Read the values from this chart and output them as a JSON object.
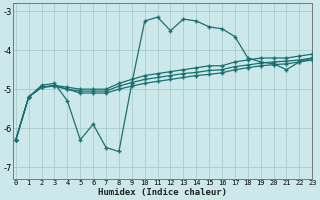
{
  "bg_color": "#cce8ea",
  "grid_color": "#aacccc",
  "line_color": "#1a7070",
  "xlabel": "Humidex (Indice chaleur)",
  "ylim": [
    -7.3,
    -2.8
  ],
  "xlim": [
    -0.2,
    23
  ],
  "yticks": [
    -7,
    -6,
    -5,
    -4,
    -3
  ],
  "xticks": [
    0,
    1,
    2,
    3,
    4,
    5,
    6,
    7,
    8,
    9,
    10,
    11,
    12,
    13,
    14,
    15,
    16,
    17,
    18,
    19,
    20,
    21,
    22,
    23
  ],
  "line1_x": [
    0,
    1,
    2,
    3,
    4,
    5,
    6,
    7,
    8,
    9,
    10,
    11,
    12,
    13,
    14,
    15,
    16,
    17,
    18,
    19,
    20,
    21,
    22,
    23
  ],
  "line1_y": [
    -6.3,
    -5.2,
    -4.9,
    -4.85,
    -5.3,
    -6.3,
    -5.9,
    -6.5,
    -6.6,
    -4.85,
    -3.25,
    -3.15,
    -3.5,
    -3.2,
    -3.25,
    -3.4,
    -3.45,
    -3.65,
    -4.2,
    -4.3,
    -4.35,
    -4.5,
    -4.3,
    -4.2
  ],
  "line2_x": [
    0,
    1,
    2,
    3,
    4,
    5,
    6,
    7,
    8,
    9,
    10,
    11,
    12,
    13,
    14,
    15,
    16,
    17,
    18,
    19,
    20,
    21,
    22,
    23
  ],
  "line2_y": [
    -6.3,
    -5.2,
    -4.95,
    -4.9,
    -4.95,
    -5.0,
    -5.0,
    -5.0,
    -4.85,
    -4.75,
    -4.65,
    -4.6,
    -4.55,
    -4.5,
    -4.45,
    -4.4,
    -4.4,
    -4.3,
    -4.25,
    -4.2,
    -4.2,
    -4.2,
    -4.15,
    -4.1
  ],
  "line3_x": [
    0,
    1,
    2,
    3,
    4,
    5,
    6,
    7,
    8,
    9,
    10,
    11,
    12,
    13,
    14,
    15,
    16,
    17,
    18,
    19,
    20,
    21,
    22,
    23
  ],
  "line3_y": [
    -6.3,
    -5.2,
    -4.95,
    -4.92,
    -5.0,
    -5.05,
    -5.05,
    -5.05,
    -4.92,
    -4.83,
    -4.75,
    -4.7,
    -4.65,
    -4.6,
    -4.57,
    -4.52,
    -4.5,
    -4.42,
    -4.38,
    -4.33,
    -4.3,
    -4.28,
    -4.25,
    -4.2
  ],
  "line4_x": [
    0,
    1,
    2,
    3,
    4,
    5,
    6,
    7,
    8,
    9,
    10,
    11,
    12,
    13,
    14,
    15,
    16,
    17,
    18,
    19,
    20,
    21,
    22,
    23
  ],
  "line4_y": [
    -6.3,
    -5.2,
    -4.95,
    -4.92,
    -5.0,
    -5.1,
    -5.1,
    -5.1,
    -5.0,
    -4.92,
    -4.85,
    -4.8,
    -4.75,
    -4.7,
    -4.65,
    -4.62,
    -4.58,
    -4.5,
    -4.45,
    -4.4,
    -4.37,
    -4.35,
    -4.3,
    -4.25
  ]
}
